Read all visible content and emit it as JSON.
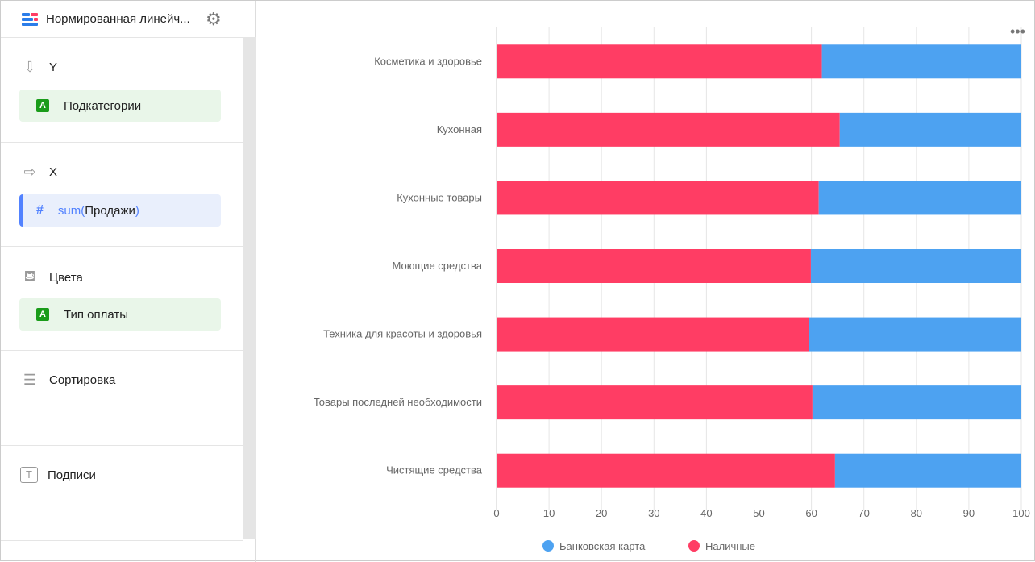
{
  "header": {
    "title": "Нормированная линейч...",
    "icon": "bar-chart-icon",
    "settings_icon": "gear-icon"
  },
  "sections": [
    {
      "title": "Y",
      "icon": "arrow-down-icon",
      "field": {
        "type": "A",
        "label": "Подкатегории"
      }
    },
    {
      "title": "X",
      "icon": "arrow-right-icon",
      "field": {
        "type": "#",
        "func": "sum(",
        "label": "Продажи",
        "close": ")"
      }
    },
    {
      "title": "Цвета",
      "icon": "paint-bucket-icon",
      "field": {
        "type": "A",
        "label": "Тип оплаты"
      }
    },
    {
      "title": "Сортировка",
      "icon": "sort-icon"
    },
    {
      "title": "Подписи",
      "icon": "text-label-icon"
    }
  ],
  "menu_icon": "more-horizontal-icon",
  "chart_data": {
    "type": "bar",
    "orientation": "horizontal",
    "stacked": "percent",
    "categories": [
      "Косметика и здоровье",
      "Кухонная",
      "Кухонные товары",
      "Моющие средства",
      "Техника для красоты и здоровья",
      "Товары последней необходимости",
      "Чистящие средства"
    ],
    "series": [
      {
        "name": "Наличные",
        "color": "#ff3d64",
        "values": [
          62,
          65.4,
          61.4,
          59.9,
          59.6,
          60.2,
          64.5
        ]
      },
      {
        "name": "Банковская карта",
        "color": "#4da2f1",
        "values": [
          38,
          34.6,
          38.6,
          40.1,
          40.4,
          39.8,
          35.5
        ]
      }
    ],
    "xlim": [
      0,
      100
    ],
    "xticks": [
      "0",
      "10",
      "20",
      "30",
      "40",
      "50",
      "60",
      "70",
      "80",
      "90",
      "100"
    ],
    "grid": true,
    "legend": {
      "position": "bottom",
      "items": [
        {
          "name": "Банковская карта",
          "color": "#4da2f1"
        },
        {
          "name": "Наличные",
          "color": "#ff3d64"
        }
      ]
    }
  }
}
